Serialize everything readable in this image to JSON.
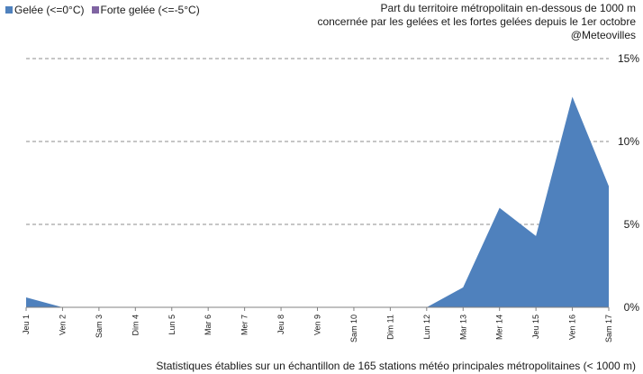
{
  "chart_data": {
    "type": "area",
    "title_lines": [
      "Part du territoire métropolitain en-dessous de 1000 m",
      "concernée par les gelées et les fortes gelées depuis le 1er octobre",
      "@Meteovilles"
    ],
    "categories": [
      "Jeu 1",
      "Ven 2",
      "Sam 3",
      "Dim 4",
      "Lun 5",
      "Mar 6",
      "Mer 7",
      "Jeu 8",
      "Ven 9",
      "Sam 10",
      "Dim 11",
      "Lun 12",
      "Mar 13",
      "Mer 14",
      "Jeu 15",
      "Ven 16",
      "Sam 17"
    ],
    "y_ticks": [
      "0%",
      "5%",
      "10%",
      "15%"
    ],
    "ylim": [
      0,
      15
    ],
    "grid": true,
    "legend_position": "top-left",
    "series": [
      {
        "name": "Gelée (<=0°C)",
        "color": "#4f81bd",
        "values": [
          0.6,
          0,
          0,
          0,
          0,
          0,
          0,
          0,
          0,
          0,
          0,
          0,
          1.2,
          6.0,
          4.3,
          12.7,
          7.3
        ]
      },
      {
        "name": "Forte gelée (<=-5°C)",
        "color": "#8064a2",
        "values": [
          0,
          0,
          0,
          0,
          0,
          0,
          0,
          0,
          0,
          0,
          0,
          0,
          0,
          0,
          0,
          0,
          0
        ]
      }
    ],
    "footnote": "Statistiques établies sur un échantillon de 165 stations météo principales métropolitaines (< 1000 m)"
  }
}
